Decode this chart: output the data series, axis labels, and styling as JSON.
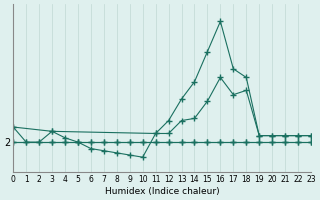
{
  "xlabel": "Humidex (Indice chaleur)",
  "bg_color": "#dff0ee",
  "line_color": "#1a7060",
  "grid_color": "#c0d8d4",
  "x_min": 0,
  "x_max": 23,
  "ylim": [
    1.3,
    5.2
  ],
  "lines": [
    {
      "x": [
        0,
        1,
        2,
        3,
        4,
        5,
        6,
        7,
        8,
        9,
        10,
        11,
        12,
        13,
        14,
        15,
        16,
        17,
        18,
        19,
        20,
        21,
        22,
        23
      ],
      "y": [
        2.35,
        2.0,
        2.0,
        2.25,
        2.1,
        2.0,
        1.85,
        1.8,
        1.75,
        1.7,
        1.65,
        2.2,
        2.2,
        2.5,
        2.55,
        2.95,
        3.5,
        3.1,
        3.2,
        2.15,
        2.15,
        2.15,
        2.15,
        2.15
      ]
    },
    {
      "x": [
        0,
        3,
        4,
        5,
        6,
        7,
        8,
        9,
        10,
        11,
        12,
        13,
        14,
        15,
        16,
        17,
        18,
        19,
        20,
        21,
        22,
        23
      ],
      "y": [
        2.0,
        2.0,
        2.0,
        2.0,
        2.0,
        2.0,
        2.0,
        2.0,
        2.0,
        2.0,
        2.0,
        2.0,
        2.0,
        2.0,
        2.0,
        2.0,
        2.0,
        2.0,
        2.0,
        2.0,
        2.0,
        2.0
      ]
    },
    {
      "x": [
        0,
        1,
        2,
        3,
        4,
        5,
        6,
        7,
        8,
        9,
        10,
        11,
        12,
        13,
        14,
        15,
        16,
        17,
        18,
        19,
        20,
        21,
        22,
        23
      ],
      "y": [
        2.0,
        2.0,
        2.0,
        2.0,
        2.0,
        2.0,
        2.0,
        2.0,
        2.0,
        2.0,
        2.0,
        2.0,
        2.0,
        2.0,
        2.0,
        2.0,
        2.0,
        2.0,
        2.0,
        2.0,
        2.0,
        2.0,
        2.0,
        2.0
      ]
    },
    {
      "x": [
        0,
        3,
        11,
        12,
        13,
        14,
        15,
        16,
        17,
        18,
        19,
        20,
        21,
        22,
        23
      ],
      "y": [
        2.35,
        2.25,
        2.2,
        2.5,
        3.0,
        3.4,
        4.1,
        4.8,
        3.7,
        3.5,
        2.15,
        2.15,
        2.15,
        2.15,
        2.15
      ]
    }
  ]
}
